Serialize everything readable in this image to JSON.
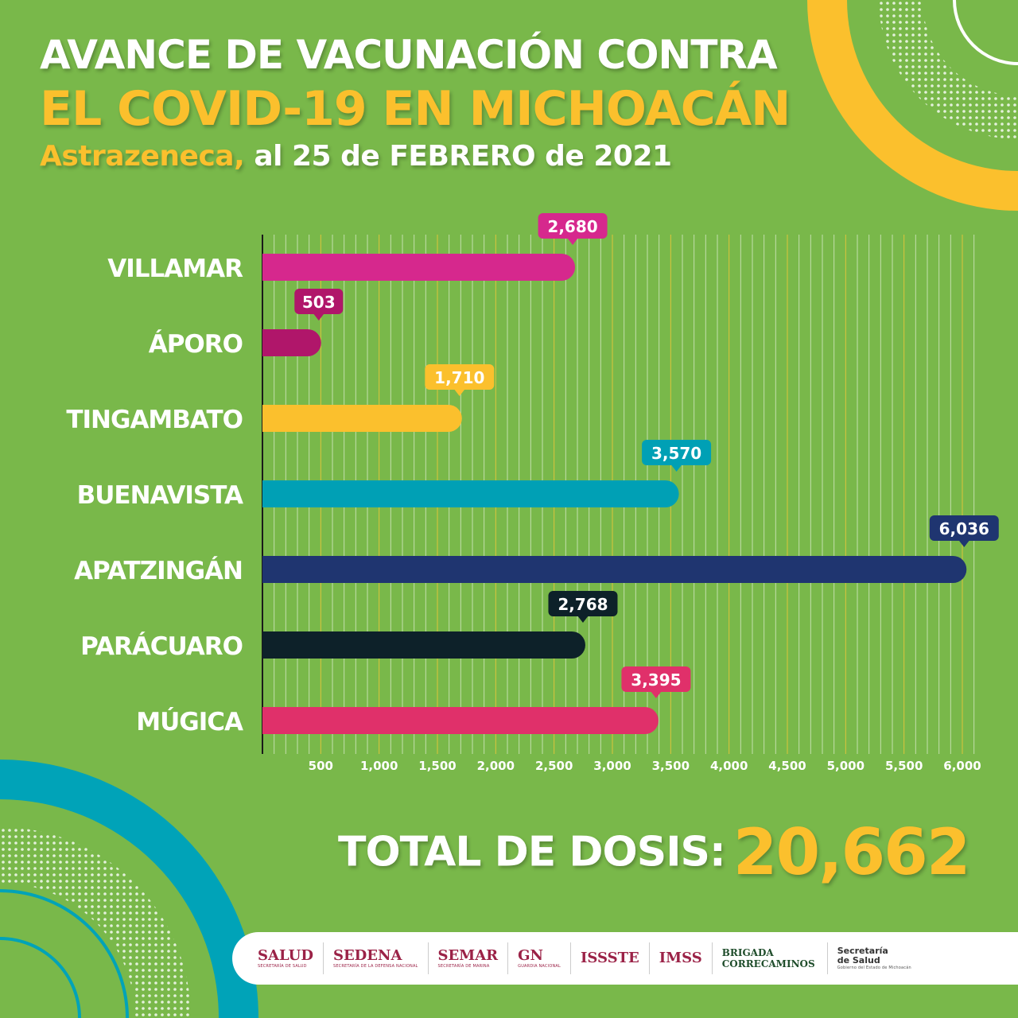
{
  "header": {
    "line1": "AVANCE DE VACUNACIÓN CONTRA",
    "line2": "EL COVID-19 EN MICHOACÁN",
    "line3_highlight": "Astrazeneca,",
    "line3_rest": " al 25 de FEBRERO de 2021"
  },
  "chart_data": {
    "type": "bar",
    "orientation": "horizontal",
    "categories": [
      "VILLAMAR",
      "ÁPORO",
      "TINGAMBATO",
      "BUENAVISTA",
      "APATZINGÁN",
      "PARÁCUARO",
      "MÚGICA"
    ],
    "values": [
      2680,
      503,
      1710,
      3570,
      6036,
      2768,
      3395
    ],
    "value_labels": [
      "2,680",
      "503",
      "1,710",
      "3,570",
      "6,036",
      "2,768",
      "3,395"
    ],
    "colors": [
      "#d6288d",
      "#b0166a",
      "#fbc02d",
      "#00a0b5",
      "#1f3570",
      "#0d2129",
      "#e0306a"
    ],
    "xticks": [
      500,
      1000,
      1500,
      2000,
      2500,
      3000,
      3500,
      4000,
      4500,
      5000,
      5500,
      6000
    ],
    "xtick_labels": [
      "500",
      "1,000",
      "1,500",
      "2,000",
      "2,500",
      "3,000",
      "3,500",
      "4,000",
      "4,500",
      "5,000",
      "5,500",
      "6,000"
    ],
    "xlim": [
      0,
      6100
    ],
    "grid": true
  },
  "total": {
    "label": "TOTAL DE DOSIS:",
    "value": "20,662"
  },
  "footer": {
    "logos": [
      {
        "name": "SALUD",
        "sub": "SECRETARÍA DE SALUD"
      },
      {
        "name": "SEDENA",
        "sub": "SECRETARÍA DE LA DEFENSA NACIONAL"
      },
      {
        "name": "SEMAR",
        "sub": "SECRETARÍA DE MARINA"
      },
      {
        "name": "GN",
        "sub": "GUARDIA NACIONAL"
      },
      {
        "name": "ISSSTE",
        "sub": ""
      },
      {
        "name": "IMSS",
        "sub": ""
      },
      {
        "name": "BRIGADA CORRECAMINOS",
        "sub": ""
      },
      {
        "name": "Secretaría de Salud",
        "sub": "Gobierno del Estado de Michoacán"
      }
    ]
  }
}
